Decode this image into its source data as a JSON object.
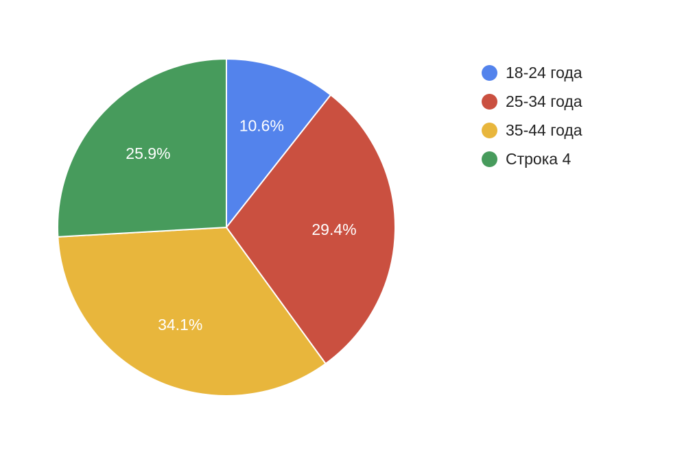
{
  "chart_data": {
    "type": "pie",
    "categories": [
      "18-24 года",
      "25-34 года",
      "35-44 года",
      "Строка 4"
    ],
    "values": [
      10.6,
      29.4,
      34.1,
      25.9
    ],
    "value_labels": [
      "10.6%",
      "29.4%",
      "34.1%",
      "25.9%"
    ],
    "colors": [
      "#5383ec",
      "#ca5040",
      "#e8b63c",
      "#479b5c"
    ],
    "start_angle": "12 o'clock",
    "direction": "clockwise",
    "legend_position": "right"
  },
  "legend": {
    "items": [
      {
        "label": "18-24 года",
        "color": "#5383ec",
        "icon": "circle-swatch"
      },
      {
        "label": "25-34 года",
        "color": "#ca5040",
        "icon": "circle-swatch"
      },
      {
        "label": "35-44 года",
        "color": "#e8b63c",
        "icon": "circle-swatch"
      },
      {
        "label": "Строка 4",
        "color": "#479b5c",
        "icon": "circle-swatch"
      }
    ]
  }
}
